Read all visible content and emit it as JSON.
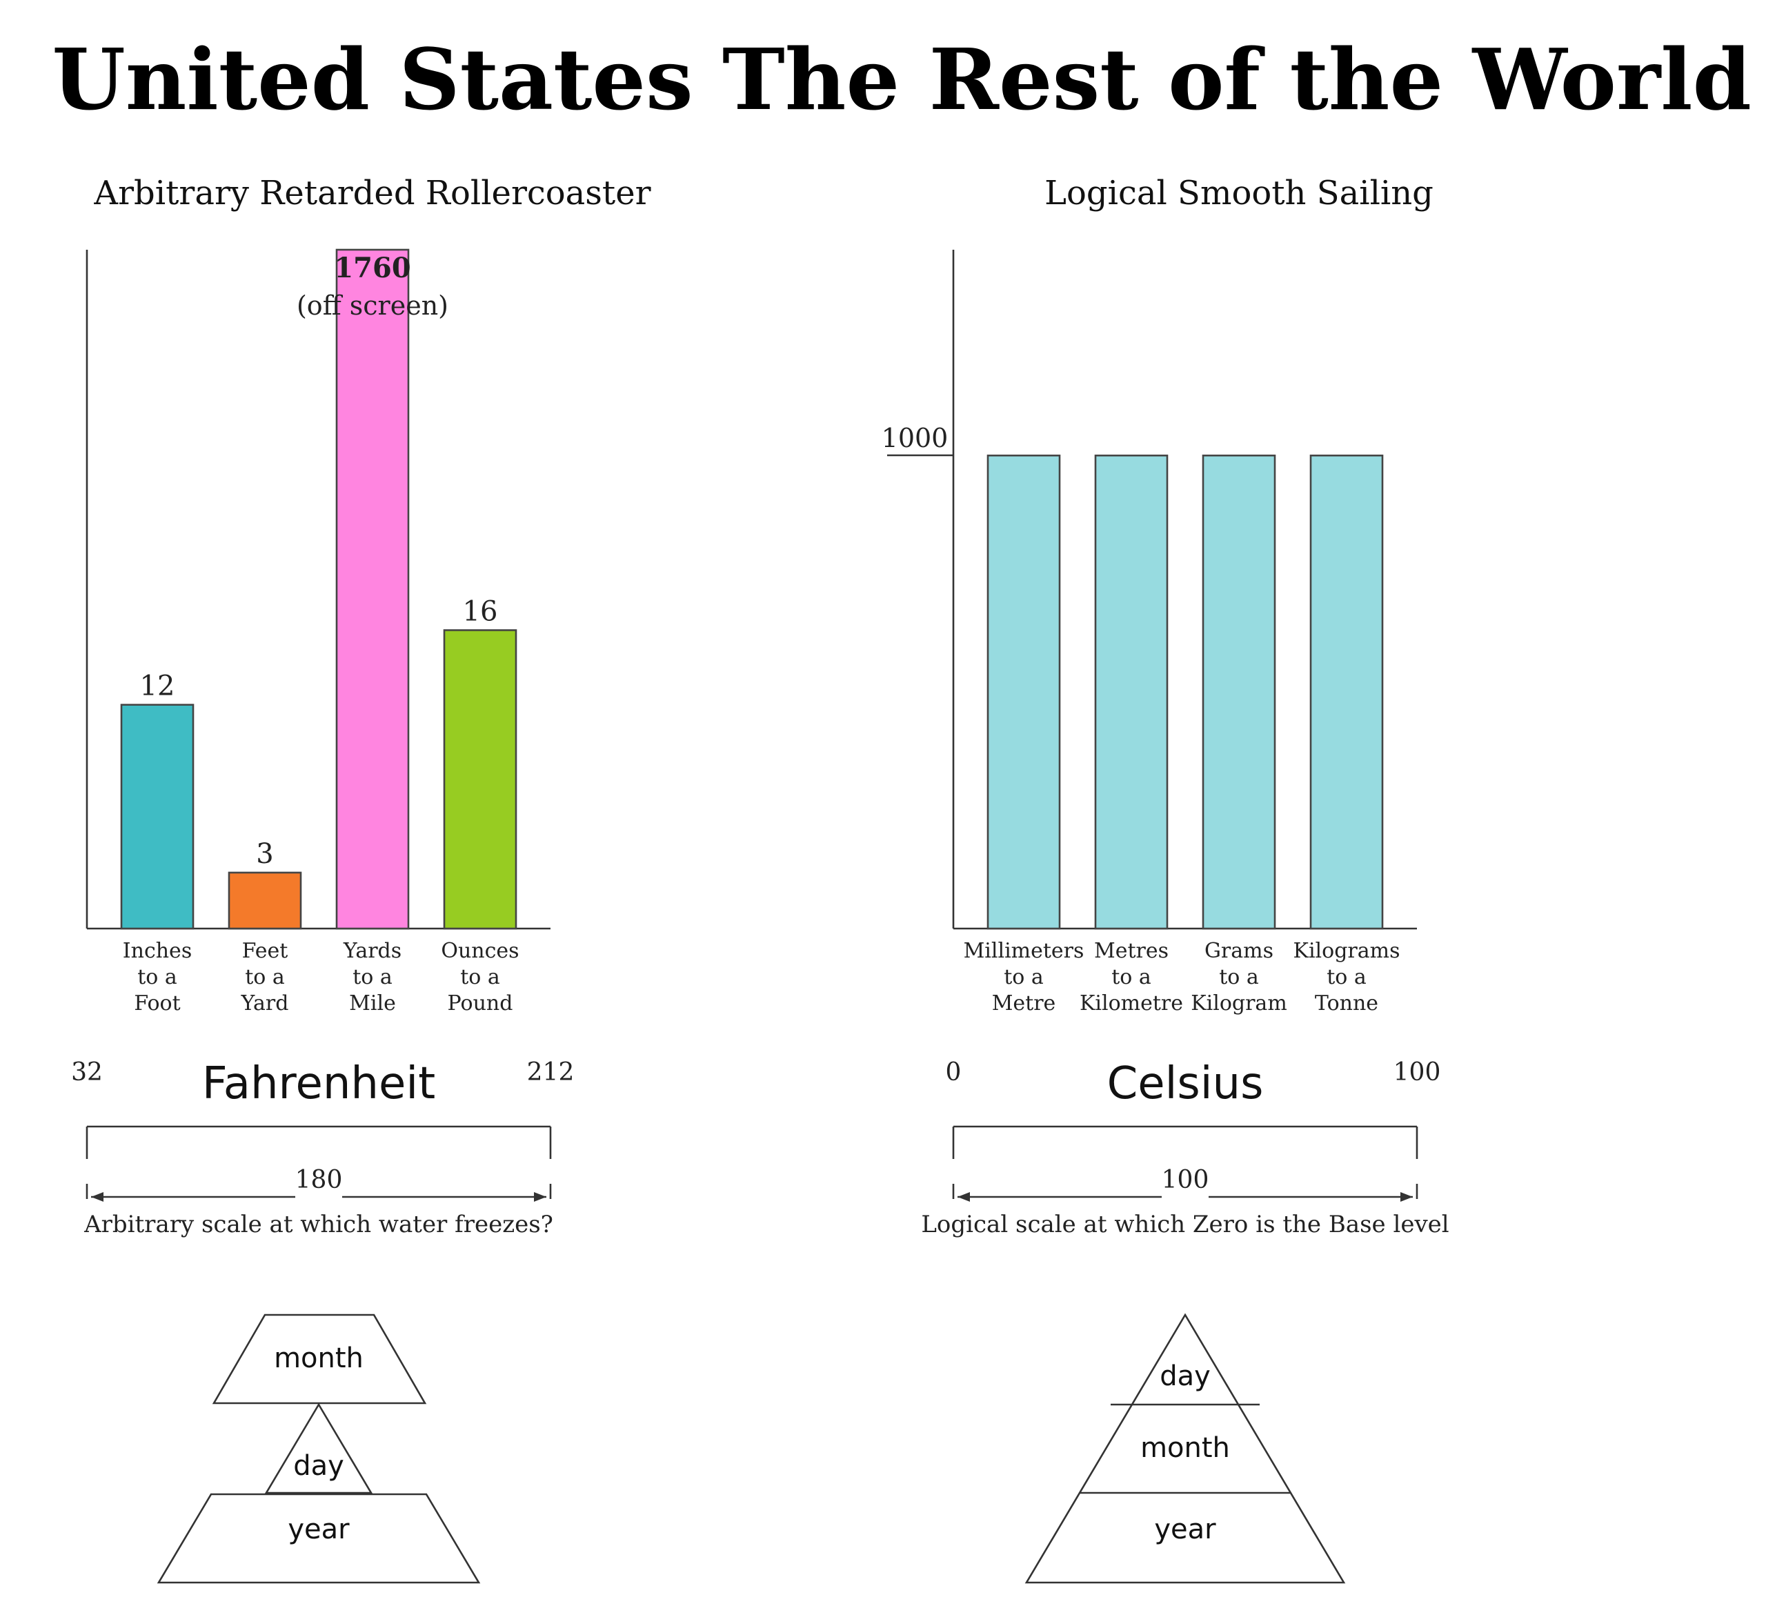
{
  "headers": {
    "left": "United States",
    "right": "The Rest of the World"
  },
  "chart_data": [
    {
      "type": "bar",
      "title": "Arbitrary Retarded Rollercoaster",
      "categories": [
        [
          "Inches",
          "to a",
          "Foot"
        ],
        [
          "Feet",
          "to a",
          "Yard"
        ],
        [
          "Yards",
          "to a",
          "Mile"
        ],
        [
          "Ounces",
          "to a",
          "Pound"
        ]
      ],
      "values": [
        12,
        3,
        1760,
        16
      ],
      "data_labels": [
        "12",
        "3",
        "1760",
        "16"
      ],
      "note": "(off screen)",
      "colors": [
        "#3fbcc4",
        "#f47a2a",
        "#ff85e0",
        "#97cc22"
      ],
      "ylim": [
        0,
        36.4
      ],
      "grid": false
    },
    {
      "type": "bar",
      "title": "Logical Smooth Sailing",
      "categories": [
        [
          "Millimeters",
          "to a",
          "Metre"
        ],
        [
          "Metres",
          "to a",
          "Kilometre"
        ],
        [
          "Grams",
          "to a",
          "Kilogram"
        ],
        [
          "Kilograms",
          "to a",
          "Tonne"
        ]
      ],
      "values": [
        1000,
        1000,
        1000,
        1000
      ],
      "tick_label": "1000",
      "colors": [
        "#97dbe0",
        "#97dbe0",
        "#97dbe0",
        "#97dbe0"
      ],
      "ylim": [
        0,
        1435
      ],
      "grid": false
    }
  ],
  "scales": {
    "left": {
      "name": "Fahrenheit",
      "min": "32",
      "max": "212",
      "span": "180",
      "caption": "Arbitrary scale at which water freezes?"
    },
    "right": {
      "name": "Celsius",
      "min": "0",
      "max": "100",
      "span": "100",
      "caption": "Logical scale at which Zero is the Base level"
    }
  },
  "dates": {
    "left": {
      "top": "month",
      "middle": "day",
      "bottom": "year"
    },
    "right": {
      "top": "day",
      "middle": "month",
      "bottom": "year"
    }
  }
}
